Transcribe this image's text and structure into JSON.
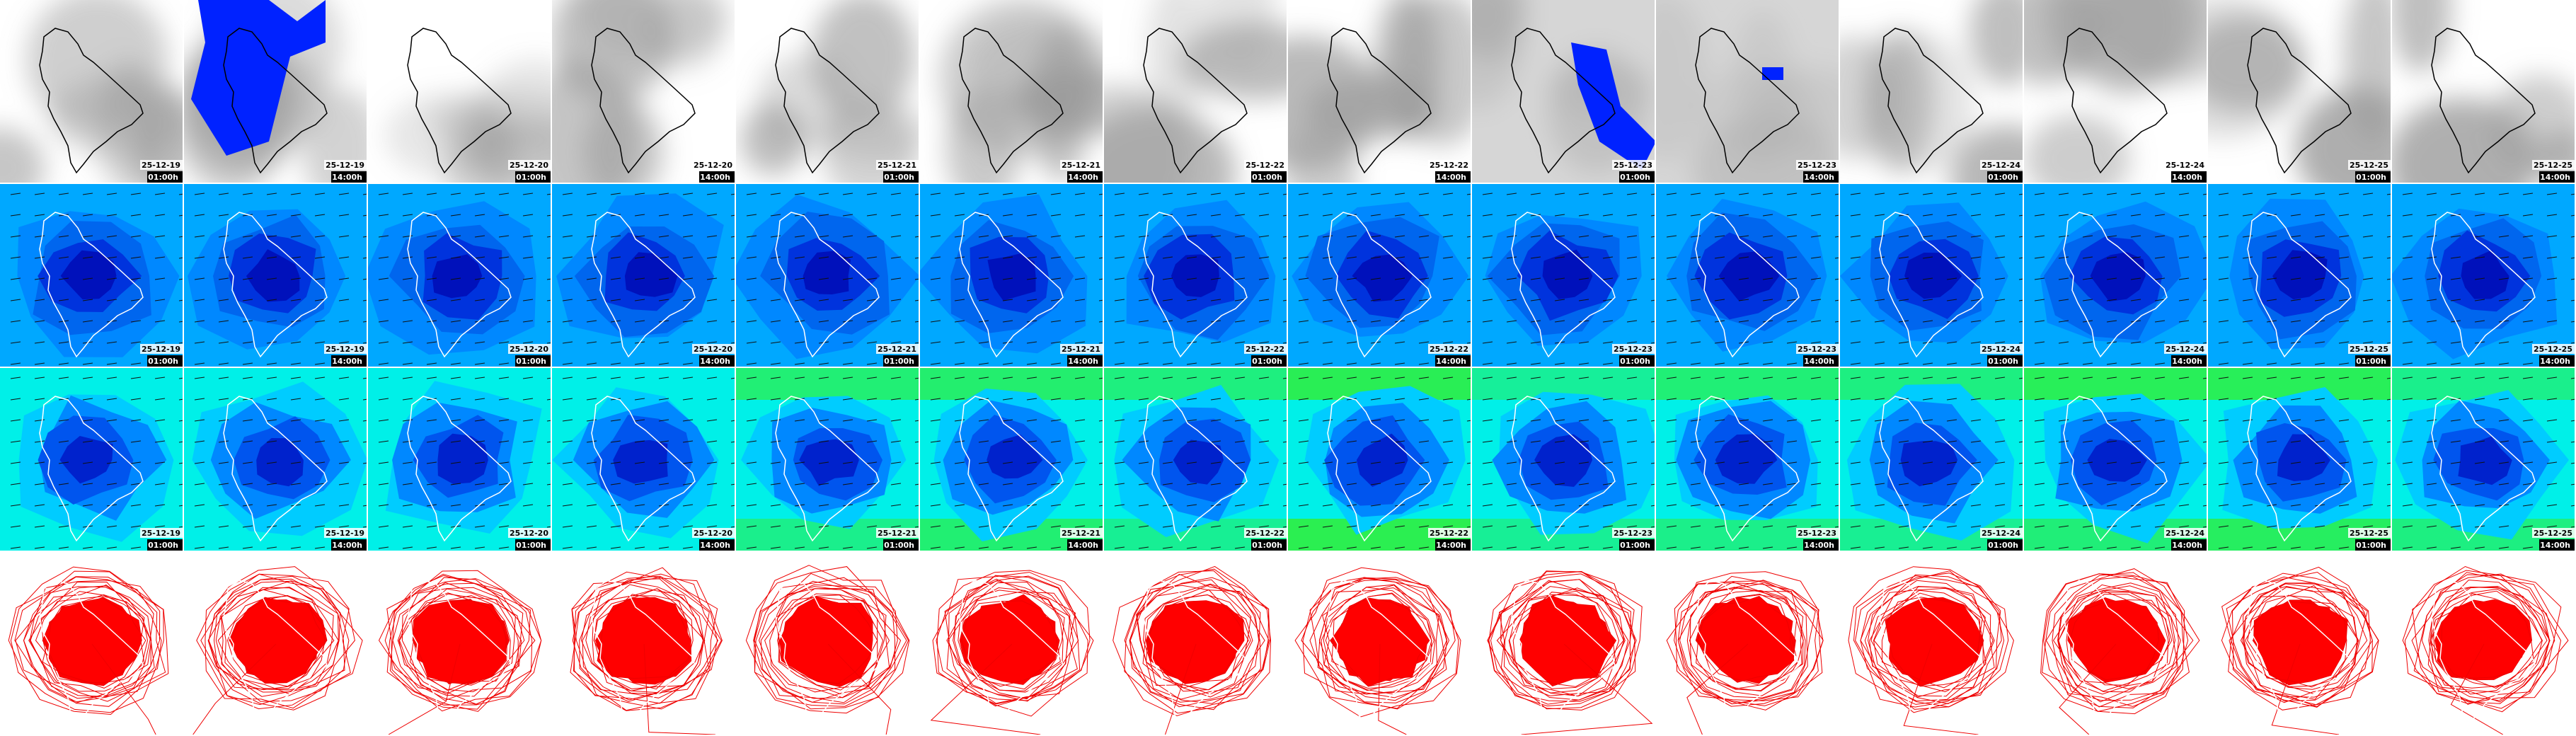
{
  "frames": [
    {
      "date": "25-12-19",
      "time": "01:00h"
    },
    {
      "date": "25-12-19",
      "time": "14:00h"
    },
    {
      "date": "25-12-20",
      "time": "01:00h"
    },
    {
      "date": "25-12-20",
      "time": "14:00h"
    },
    {
      "date": "25-12-21",
      "time": "01:00h"
    },
    {
      "date": "25-12-21",
      "time": "14:00h"
    },
    {
      "date": "25-12-22",
      "time": "01:00h"
    },
    {
      "date": "25-12-22",
      "time": "14:00h"
    },
    {
      "date": "25-12-23",
      "time": "01:00h"
    },
    {
      "date": "25-12-23",
      "time": "14:00h"
    },
    {
      "date": "25-12-24",
      "time": "01:00h"
    },
    {
      "date": "25-12-24",
      "time": "14:00h"
    },
    {
      "date": "25-12-25",
      "time": "01:00h"
    },
    {
      "date": "25-12-25",
      "time": "14:00h"
    }
  ]
}
